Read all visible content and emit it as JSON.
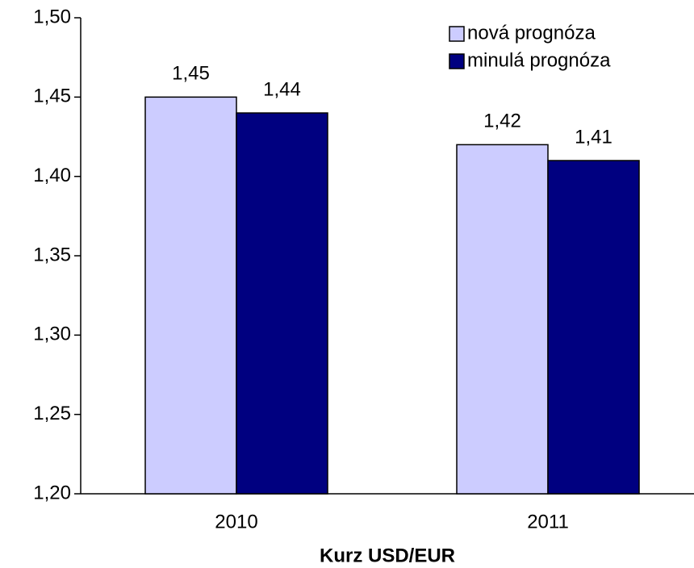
{
  "chart_data": {
    "type": "bar",
    "title": "Kurz USD/EUR",
    "categories": [
      "2010",
      "2011"
    ],
    "series": [
      {
        "name": "nová prognóza",
        "color": "#ccccff",
        "values": [
          1.45,
          1.42
        ],
        "value_labels": [
          "1,45",
          "1,42"
        ]
      },
      {
        "name": "minulá prognóza",
        "color": "#000080",
        "values": [
          1.44,
          1.41
        ],
        "value_labels": [
          "1,44",
          "1,41"
        ]
      }
    ],
    "ylim": [
      1.2,
      1.5
    ],
    "yticks": [
      {
        "value": 1.2,
        "label": "1,20"
      },
      {
        "value": 1.25,
        "label": "1,25"
      },
      {
        "value": 1.3,
        "label": "1,30"
      },
      {
        "value": 1.35,
        "label": "1,35"
      },
      {
        "value": 1.4,
        "label": "1,40"
      },
      {
        "value": 1.45,
        "label": "1,45"
      },
      {
        "value": 1.5,
        "label": "1,50"
      }
    ],
    "grid": false,
    "legend": "top-right"
  }
}
